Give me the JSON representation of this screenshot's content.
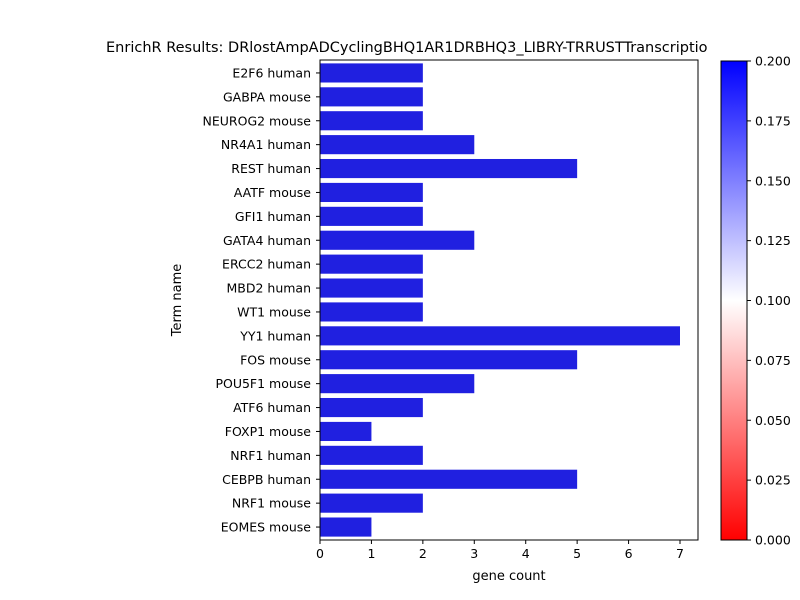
{
  "chart_data": {
    "type": "bar",
    "orientation": "horizontal",
    "title": "EnrichR Results: DRlostAmpADCyclingBHQ1AR1DRBHQ3_LIBRY-TRRUSTTranscriptio",
    "xlabel": "gene count",
    "ylabel": "Term name",
    "xlim": [
      0,
      7.35
    ],
    "x_ticks": [
      "0",
      "1",
      "2",
      "3",
      "4",
      "5",
      "6",
      "7"
    ],
    "categories": [
      "E2F6 human",
      "GABPA mouse",
      "NEUROG2 mouse",
      "NR4A1 human",
      "REST human",
      "AATF mouse",
      "GFI1 human",
      "GATA4 human",
      "ERCC2 human",
      "MBD2 human",
      "WT1 mouse",
      "YY1 human",
      "FOS mouse",
      "POU5F1 mouse",
      "ATF6 human",
      "FOXP1 mouse",
      "NRF1 human",
      "CEBPB human",
      "NRF1 mouse",
      "EOMES mouse"
    ],
    "values": [
      2,
      2,
      2,
      3,
      5,
      2,
      2,
      3,
      2,
      2,
      2,
      7,
      5,
      3,
      2,
      1,
      2,
      5,
      2,
      1
    ],
    "bar_color": "#2020e0",
    "colorbar": {
      "range": [
        0.0,
        0.2
      ],
      "ticks": [
        "0.000",
        "0.025",
        "0.050",
        "0.075",
        "0.100",
        "0.125",
        "0.150",
        "0.175",
        "0.200"
      ],
      "colors": [
        "#ff0000",
        "#ffffff",
        "#0000ff"
      ]
    }
  }
}
